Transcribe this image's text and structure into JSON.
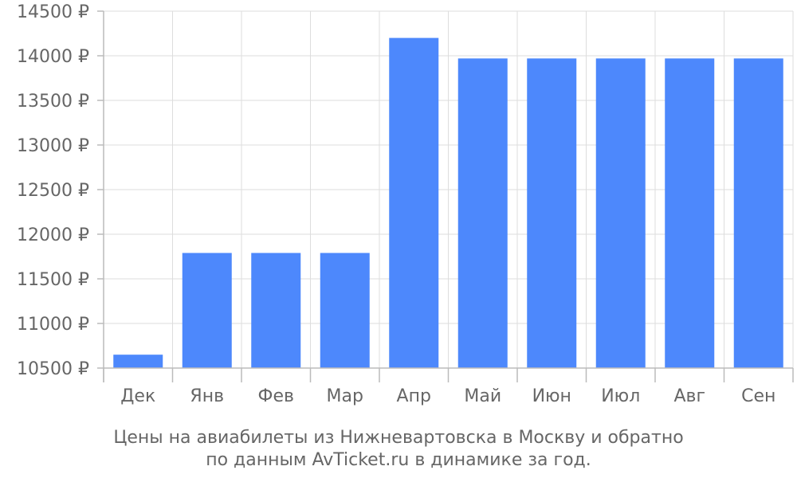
{
  "chart_data": {
    "type": "bar",
    "categories": [
      "Дек",
      "Янв",
      "Фев",
      "Мар",
      "Апр",
      "Май",
      "Июн",
      "Июл",
      "Авг",
      "Сен"
    ],
    "values": [
      10650,
      11790,
      11790,
      11790,
      14200,
      13970,
      13970,
      13970,
      13970,
      13970
    ],
    "ylim": [
      10500,
      14500
    ],
    "yticks": [
      10500,
      11000,
      11500,
      12000,
      12500,
      13000,
      13500,
      14000,
      14500
    ],
    "y_tick_suffix": " ₽",
    "bar_color": "#4d88fc",
    "grid": true,
    "caption_lines": [
      "Цены на авиабилеты из Нижневартовска в Москву и обратно",
      "по данным AvTicket.ru в динамике за год."
    ]
  }
}
